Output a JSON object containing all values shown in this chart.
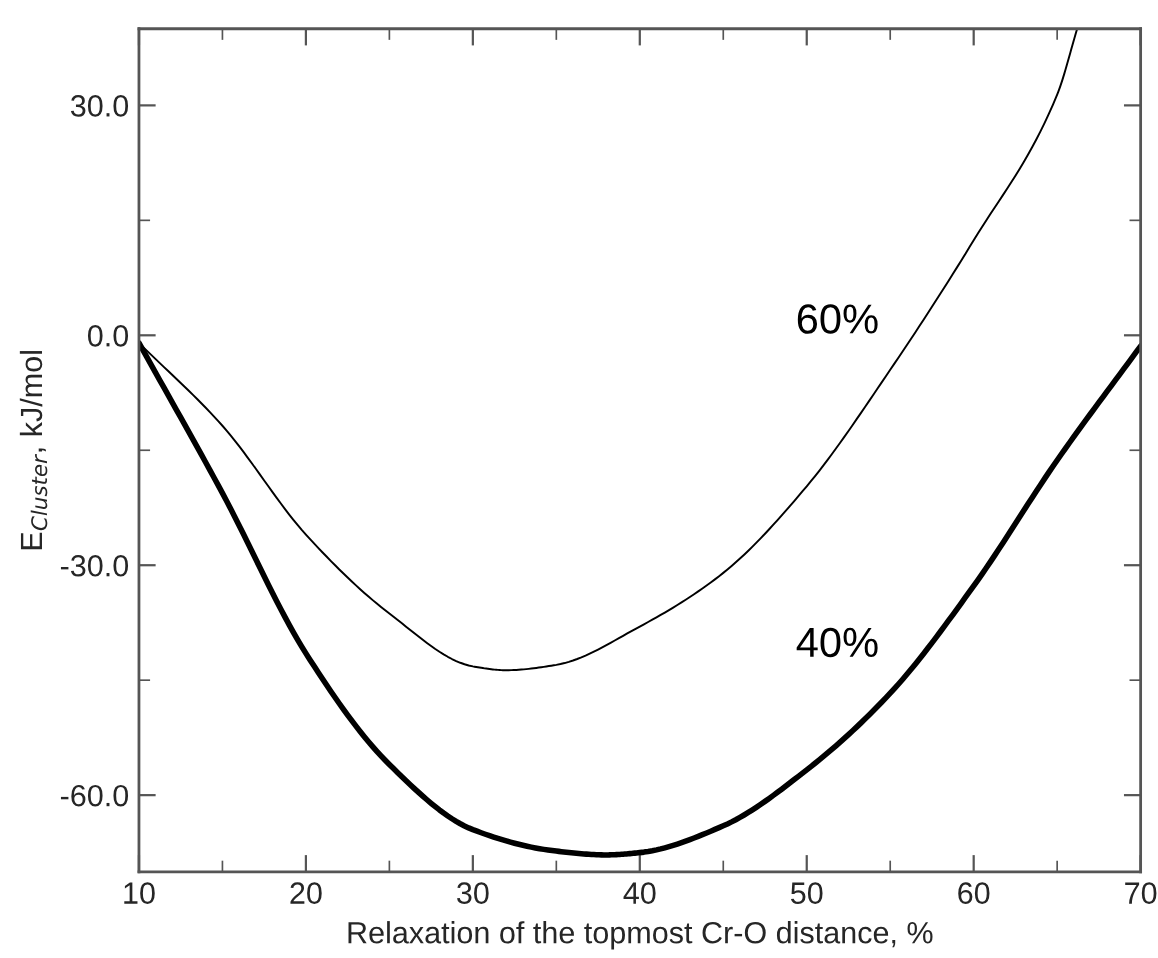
{
  "chart_data": {
    "type": "line",
    "xlabel": "Relaxation of the topmost Cr-O distance, %",
    "ylabel": "E$_{Cluster}$, kJ/mol",
    "series": [
      {
        "name": "60%",
        "color": "#000000",
        "x": [
          10,
          15,
          20,
          25,
          30,
          32,
          35,
          40,
          45,
          50,
          55,
          60,
          65,
          66.2
        ],
        "values": [
          -1,
          -11.8,
          -26,
          -36.3,
          -43.2,
          -43.7,
          -43,
          -38,
          -31,
          -19.7,
          -4.5,
          12.4,
          31.4,
          40
        ]
      },
      {
        "name": "40%",
        "color": "#000000",
        "x": [
          10,
          15,
          20,
          25,
          30,
          35,
          38,
          40,
          45,
          50,
          55,
          60,
          65,
          70
        ],
        "values": [
          -1,
          -20.6,
          -41.5,
          -56,
          -64.5,
          -67.3,
          -67.8,
          -67.5,
          -64,
          -56.7,
          -46.7,
          -32.7,
          -16.3,
          -1.4
        ]
      }
    ],
    "xlim": [
      10,
      70
    ],
    "xticks": [
      10,
      20,
      30,
      40,
      50,
      60,
      70
    ],
    "ylim": [
      -70,
      40
    ],
    "yticks": [
      {
        "value": -60,
        "label": "-60.0"
      },
      {
        "value": -30,
        "label": "-30.0"
      },
      {
        "value": 0,
        "label": "0.0"
      },
      {
        "value": 30,
        "label": "30.0"
      }
    ],
    "grid": false,
    "legend": false,
    "marker": "none",
    "line_style": "solid"
  }
}
